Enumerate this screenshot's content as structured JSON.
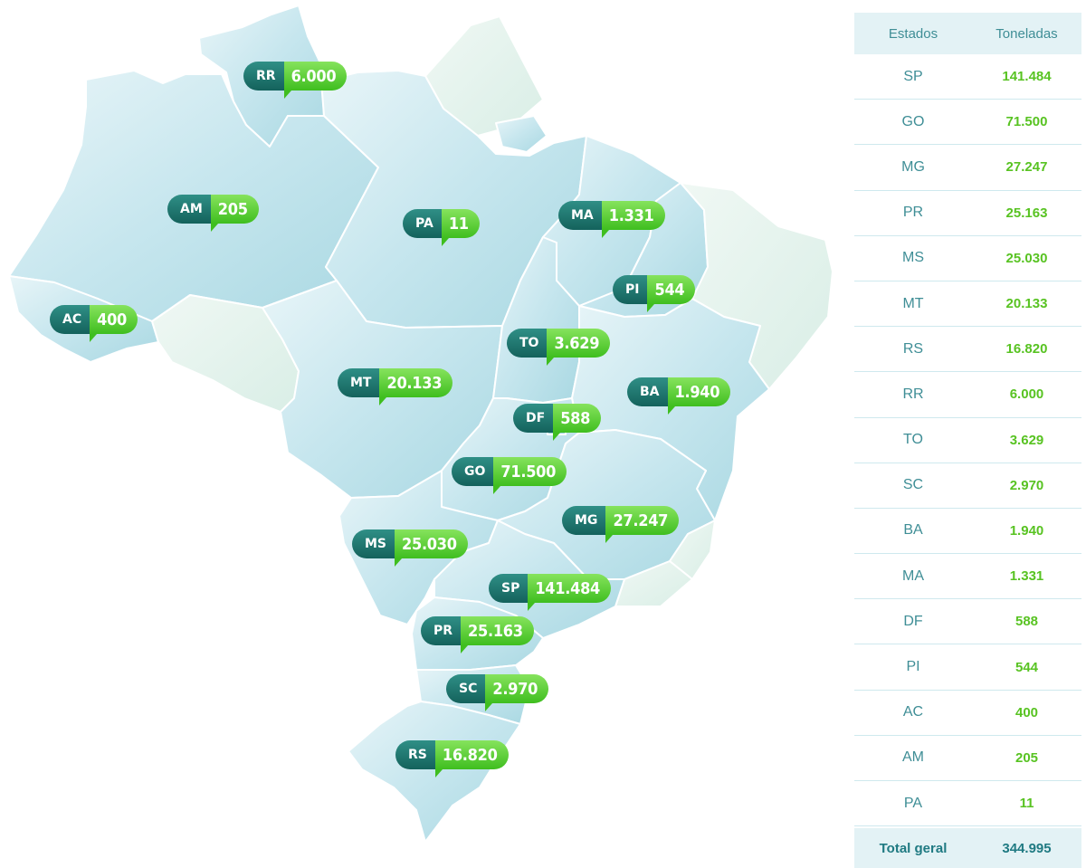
{
  "map": {
    "badges": [
      {
        "code": "RR",
        "value": "6.000"
      },
      {
        "code": "AM",
        "value": "205"
      },
      {
        "code": "PA",
        "value": "11"
      },
      {
        "code": "MA",
        "value": "1.331"
      },
      {
        "code": "PI",
        "value": "544"
      },
      {
        "code": "AC",
        "value": "400"
      },
      {
        "code": "TO",
        "value": "3.629"
      },
      {
        "code": "MT",
        "value": "20.133"
      },
      {
        "code": "BA",
        "value": "1.940"
      },
      {
        "code": "DF",
        "value": "588"
      },
      {
        "code": "GO",
        "value": "71.500"
      },
      {
        "code": "MG",
        "value": "27.247"
      },
      {
        "code": "MS",
        "value": "25.030"
      },
      {
        "code": "SP",
        "value": "141.484"
      },
      {
        "code": "PR",
        "value": "25.163"
      },
      {
        "code": "SC",
        "value": "2.970"
      },
      {
        "code": "RS",
        "value": "16.820"
      }
    ],
    "colors": {
      "state_highlight": "#cdeaf0",
      "state_other": "#e6f3ee",
      "border": "#ffffff",
      "code_bg": "#1f7a72",
      "value_bg": "#5fd23a"
    }
  },
  "table": {
    "header": {
      "col1": "Estados",
      "col2": "Toneladas"
    },
    "rows": [
      {
        "state": "SP",
        "tons": "141.484"
      },
      {
        "state": "GO",
        "tons": "71.500"
      },
      {
        "state": "MG",
        "tons": "27.247"
      },
      {
        "state": "PR",
        "tons": "25.163"
      },
      {
        "state": "MS",
        "tons": "25.030"
      },
      {
        "state": "MT",
        "tons": "20.133"
      },
      {
        "state": "RS",
        "tons": "16.820"
      },
      {
        "state": "RR",
        "tons": "6.000"
      },
      {
        "state": "TO",
        "tons": "3.629"
      },
      {
        "state": "SC",
        "tons": "2.970"
      },
      {
        "state": "BA",
        "tons": "1.940"
      },
      {
        "state": "MA",
        "tons": "1.331"
      },
      {
        "state": "DF",
        "tons": "588"
      },
      {
        "state": "PI",
        "tons": "544"
      },
      {
        "state": "AC",
        "tons": "400"
      },
      {
        "state": "AM",
        "tons": "205"
      },
      {
        "state": "PA",
        "tons": "11"
      }
    ],
    "total": {
      "label": "Total geral",
      "value": "344.995"
    }
  }
}
